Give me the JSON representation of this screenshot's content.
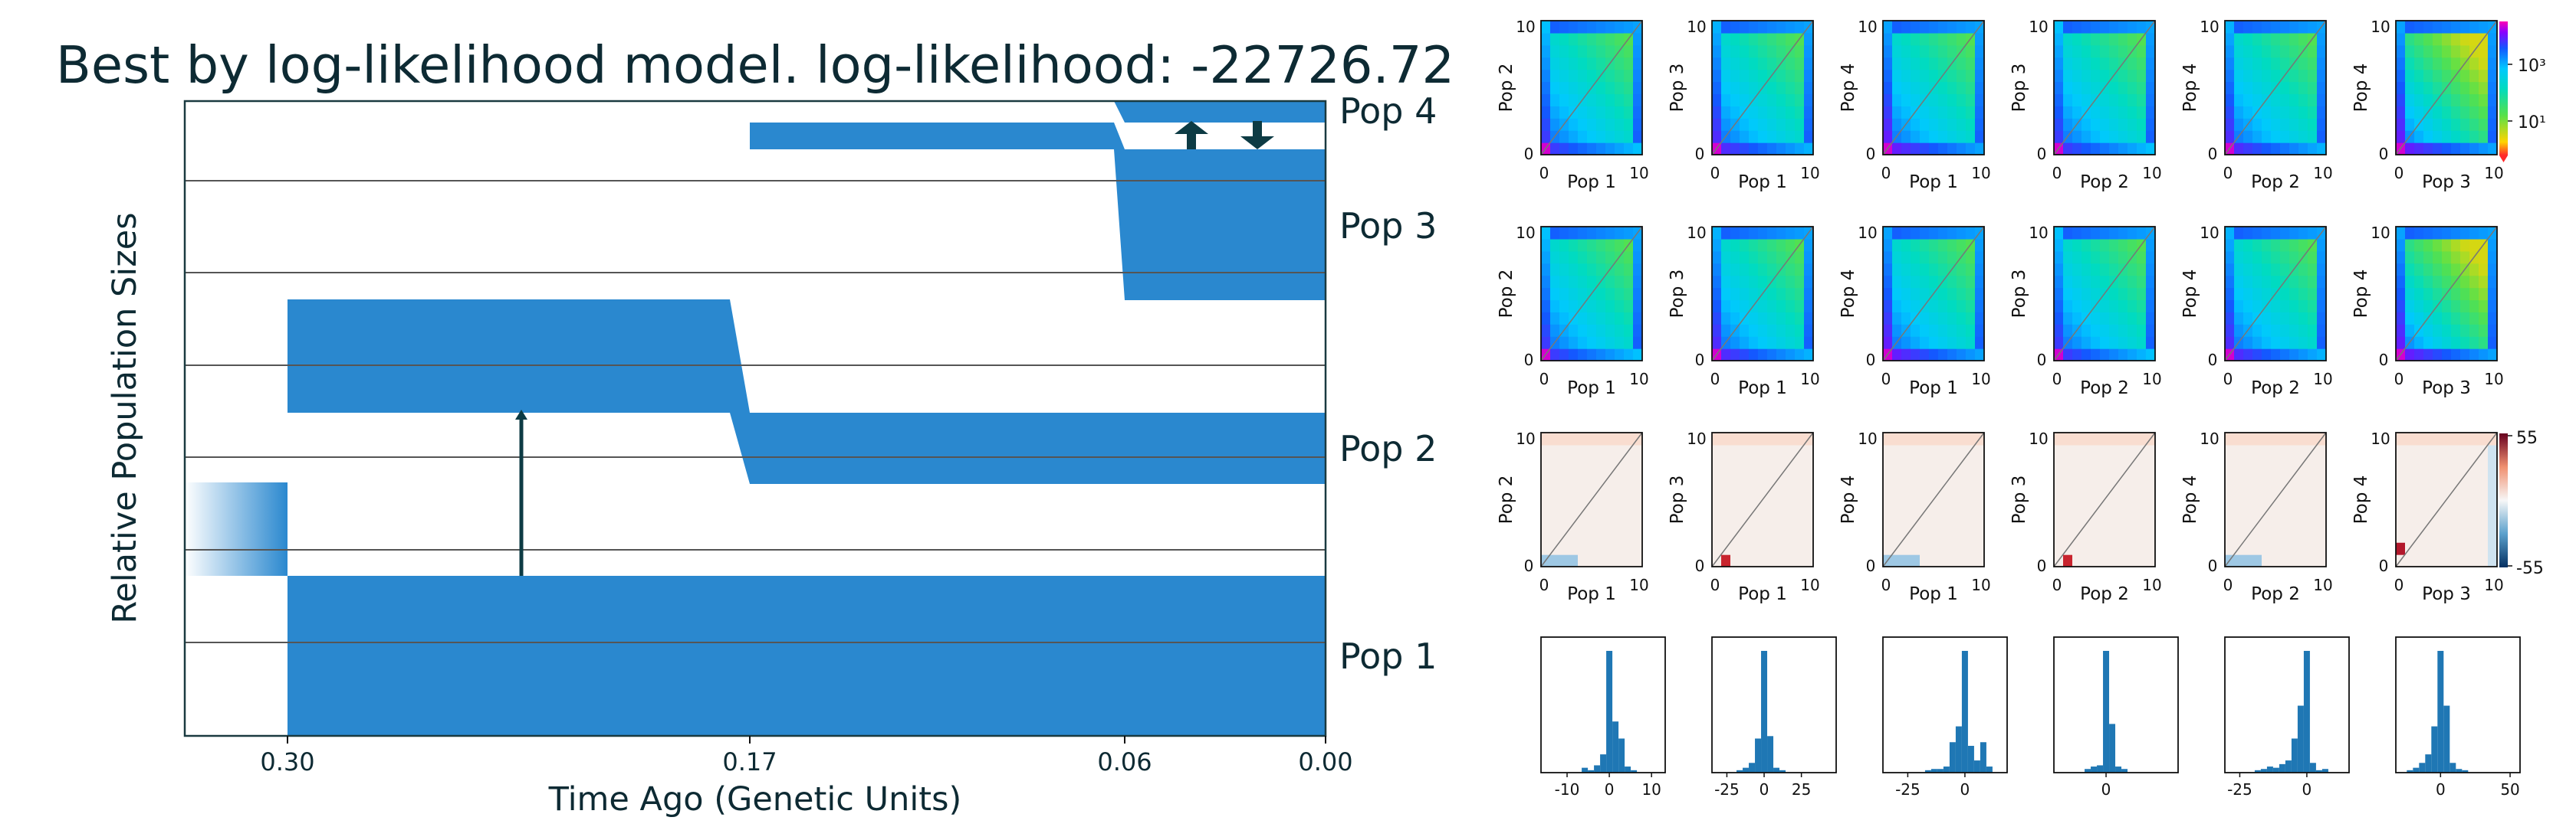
{
  "title": "Best by log-likelihood model. log-likelihood: -22726.72",
  "colors": {
    "pop_fill": "#2a88cf",
    "line": "#0d3b44",
    "grid": "#555555",
    "hist": "#1f77b4"
  },
  "chart_data": [
    {
      "type": "demographic-model",
      "title": "Best by log-likelihood model. log-likelihood: -22726.72",
      "xlabel": "Time Ago (Genetic Units)",
      "ylabel": "Relative Population Sizes",
      "xticks": [
        "0.30",
        "0.17",
        "0.06",
        "0.00"
      ],
      "populations": [
        "Pop 1",
        "Pop 2",
        "Pop 3",
        "Pop 4"
      ],
      "split_times": [
        0.3,
        0.17,
        0.06
      ],
      "migrations": [
        {
          "from": "Pop 1",
          "to": "Pop 2",
          "direction": "up"
        },
        {
          "from": "Pop 3",
          "to": "Pop 4",
          "direction": "up"
        },
        {
          "from": "Pop 4",
          "to": "Pop 3",
          "direction": "down"
        }
      ]
    },
    {
      "type": "heatmap",
      "rows": [
        "data",
        "model",
        "residuals",
        "residual histograms"
      ],
      "pairs": [
        {
          "x": "Pop 1",
          "y": "Pop 2"
        },
        {
          "x": "Pop 1",
          "y": "Pop 3"
        },
        {
          "x": "Pop 1",
          "y": "Pop 4"
        },
        {
          "x": "Pop 2",
          "y": "Pop 3"
        },
        {
          "x": "Pop 2",
          "y": "Pop 4"
        },
        {
          "x": "Pop 3",
          "y": "Pop 4"
        }
      ],
      "axis_ticks": [
        "0",
        "10"
      ],
      "data_colorbar_ticks": [
        "10³",
        "10¹"
      ],
      "residual_colorbar_ticks": [
        "55",
        "-55"
      ],
      "hist_xticks": [
        [
          "-10",
          "0",
          "10"
        ],
        [
          "-25",
          "0",
          "25"
        ],
        [
          "-25",
          "0"
        ],
        [
          "0"
        ],
        [
          "-25",
          "0"
        ],
        [
          "0",
          "50"
        ]
      ]
    }
  ]
}
